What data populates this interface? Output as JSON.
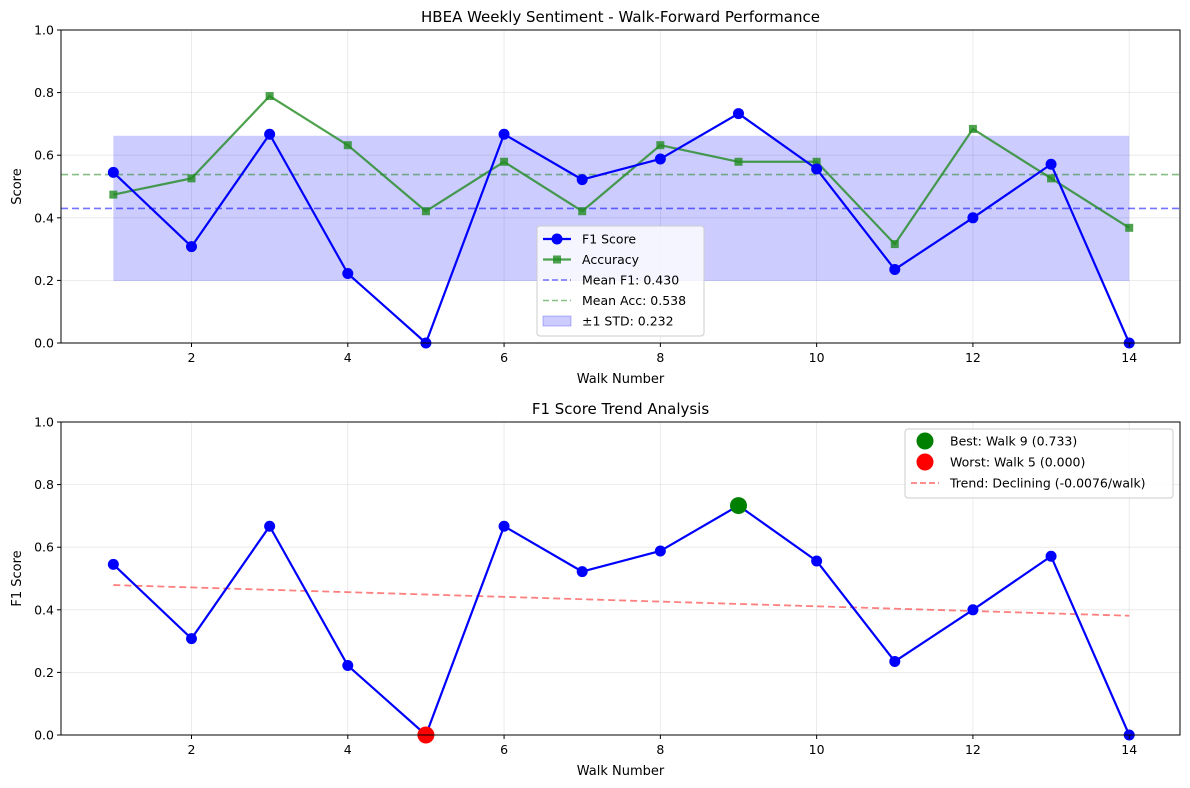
{
  "chart_data": [
    {
      "type": "line",
      "title": "HBEA Weekly Sentiment - Walk-Forward Performance",
      "xlabel": "Walk Number",
      "ylabel": "Score",
      "xlim": [
        0.33,
        14.65
      ],
      "ylim": [
        0,
        1.0
      ],
      "xticks": [
        "2",
        "4",
        "6",
        "8",
        "10",
        "12",
        "14"
      ],
      "xtick_values": [
        2,
        4,
        6,
        8,
        10,
        12,
        14
      ],
      "yticks": [
        "0.0",
        "0.2",
        "0.4",
        "0.6",
        "0.8",
        "1.0"
      ],
      "ytick_values": [
        0,
        0.2,
        0.4,
        0.6,
        0.8,
        1.0
      ],
      "grid": true,
      "legend_position": "lower-center",
      "x": [
        1,
        2,
        3,
        4,
        5,
        6,
        7,
        8,
        9,
        10,
        11,
        12,
        13,
        14
      ],
      "series": [
        {
          "name": "F1 Score",
          "color": "#0000ff",
          "marker": "circle",
          "values": [
            0.545,
            0.308,
            0.667,
            0.222,
            0.0,
            0.667,
            0.522,
            0.588,
            0.733,
            0.556,
            0.235,
            0.4,
            0.571,
            0.0
          ]
        },
        {
          "name": "Accuracy",
          "color": "#228b22",
          "marker": "square",
          "values": [
            0.474,
            0.526,
            0.789,
            0.632,
            0.421,
            0.579,
            0.421,
            0.632,
            0.579,
            0.579,
            0.316,
            0.684,
            0.526,
            0.368
          ]
        }
      ],
      "reference_lines": [
        {
          "label": "Mean F1: 0.430",
          "value": 0.43,
          "color": "#0000ff"
        },
        {
          "label": "Mean Acc: 0.538",
          "value": 0.538,
          "color": "#228b22"
        }
      ],
      "band": {
        "label": "±1 STD: 0.232",
        "lower": 0.198,
        "upper": 0.662,
        "x_from": 1,
        "x_to": 14,
        "color": "#0000ff"
      }
    },
    {
      "type": "line",
      "title": "F1 Score Trend Analysis",
      "xlabel": "Walk Number",
      "ylabel": "F1 Score",
      "xlim": [
        0.33,
        14.65
      ],
      "ylim": [
        0,
        1.0
      ],
      "xticks": [
        "2",
        "4",
        "6",
        "8",
        "10",
        "12",
        "14"
      ],
      "xtick_values": [
        2,
        4,
        6,
        8,
        10,
        12,
        14
      ],
      "yticks": [
        "0.0",
        "0.2",
        "0.4",
        "0.6",
        "0.8",
        "1.0"
      ],
      "ytick_values": [
        0,
        0.2,
        0.4,
        0.6,
        0.8,
        1.0
      ],
      "grid": true,
      "legend_position": "top-right",
      "x": [
        1,
        2,
        3,
        4,
        5,
        6,
        7,
        8,
        9,
        10,
        11,
        12,
        13,
        14
      ],
      "series": [
        {
          "color": "#0000ff",
          "marker": "circle",
          "values": [
            0.545,
            0.308,
            0.667,
            0.222,
            0.0,
            0.667,
            0.522,
            0.588,
            0.733,
            0.556,
            0.235,
            0.4,
            0.571,
            0.0
          ]
        }
      ],
      "highlights": [
        {
          "label": "Best: Walk 9 (0.733)",
          "x": 9,
          "y": 0.733,
          "color": "#008000"
        },
        {
          "label": "Worst: Walk 5 (0.000)",
          "x": 5,
          "y": 0.0,
          "color": "#ff0000"
        }
      ],
      "trend": {
        "label": "Trend: Declining (-0.0076/walk)",
        "x_from": 1,
        "x_to": 14,
        "y_from": 0.479,
        "y_to": 0.381,
        "color": "#ff0000"
      }
    }
  ]
}
